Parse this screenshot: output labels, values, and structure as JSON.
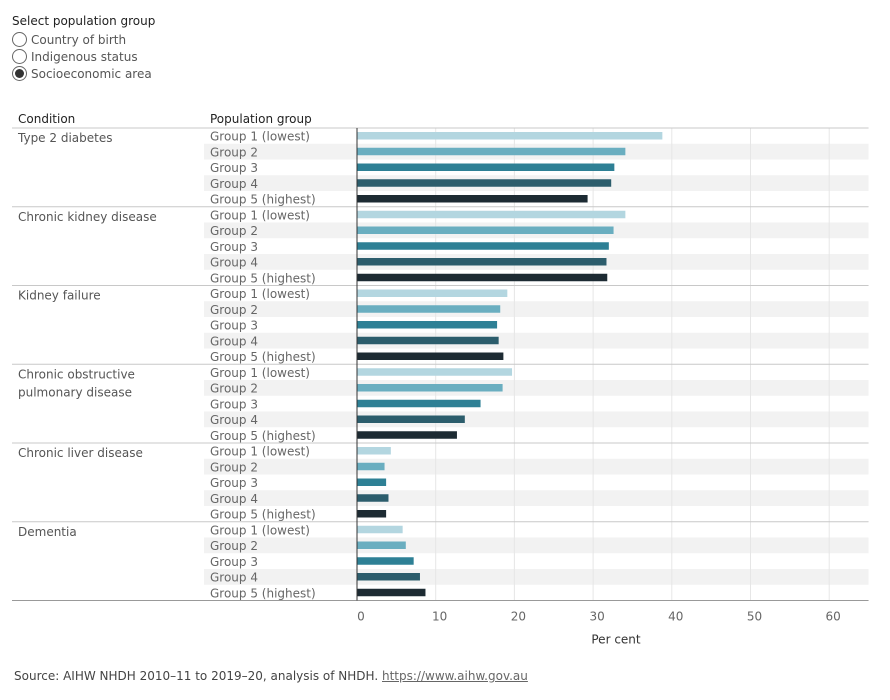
{
  "filter": {
    "title": "Select population group",
    "options": [
      {
        "label": "Country of birth",
        "selected": false
      },
      {
        "label": "Indigenous status",
        "selected": false
      },
      {
        "label": "Socioeconomic area",
        "selected": true
      }
    ]
  },
  "headers": {
    "condition": "Condition",
    "group": "Population group"
  },
  "chart_data": {
    "type": "bar",
    "orientation": "horizontal",
    "xlabel": "Per cent",
    "xlim": [
      0,
      65
    ],
    "x_ticks": [
      0,
      10,
      20,
      30,
      40,
      50,
      60
    ],
    "groups": [
      "Group 1 (lowest)",
      "Group 2",
      "Group 3",
      "Group 4",
      "Group 5 (highest)"
    ],
    "colors": [
      "#b3d6e0",
      "#6aaec0",
      "#2e8095",
      "#2c5d6c",
      "#1d2b33"
    ],
    "conditions": [
      {
        "label": "Type 2 diabetes",
        "values": [
          38.8,
          34.1,
          32.7,
          32.3,
          29.3
        ]
      },
      {
        "label": "Chronic kidney disease",
        "values": [
          34.1,
          32.6,
          32.0,
          31.7,
          31.8
        ]
      },
      {
        "label": "Kidney failure",
        "values": [
          19.1,
          18.2,
          17.8,
          18.0,
          18.6
        ]
      },
      {
        "label": "Chronic obstructive pulmonary disease",
        "values": [
          19.7,
          18.5,
          15.7,
          13.7,
          12.7
        ]
      },
      {
        "label": "Chronic liver disease",
        "values": [
          4.3,
          3.5,
          3.7,
          4.0,
          3.7
        ]
      },
      {
        "label": "Dementia",
        "values": [
          5.8,
          6.2,
          7.2,
          8.0,
          8.7
        ]
      }
    ]
  },
  "source": {
    "text": "Source: AIHW NHDH 2010–11 to 2019–20, analysis of NHDH.",
    "link": "https://www.aihw.gov.au"
  }
}
